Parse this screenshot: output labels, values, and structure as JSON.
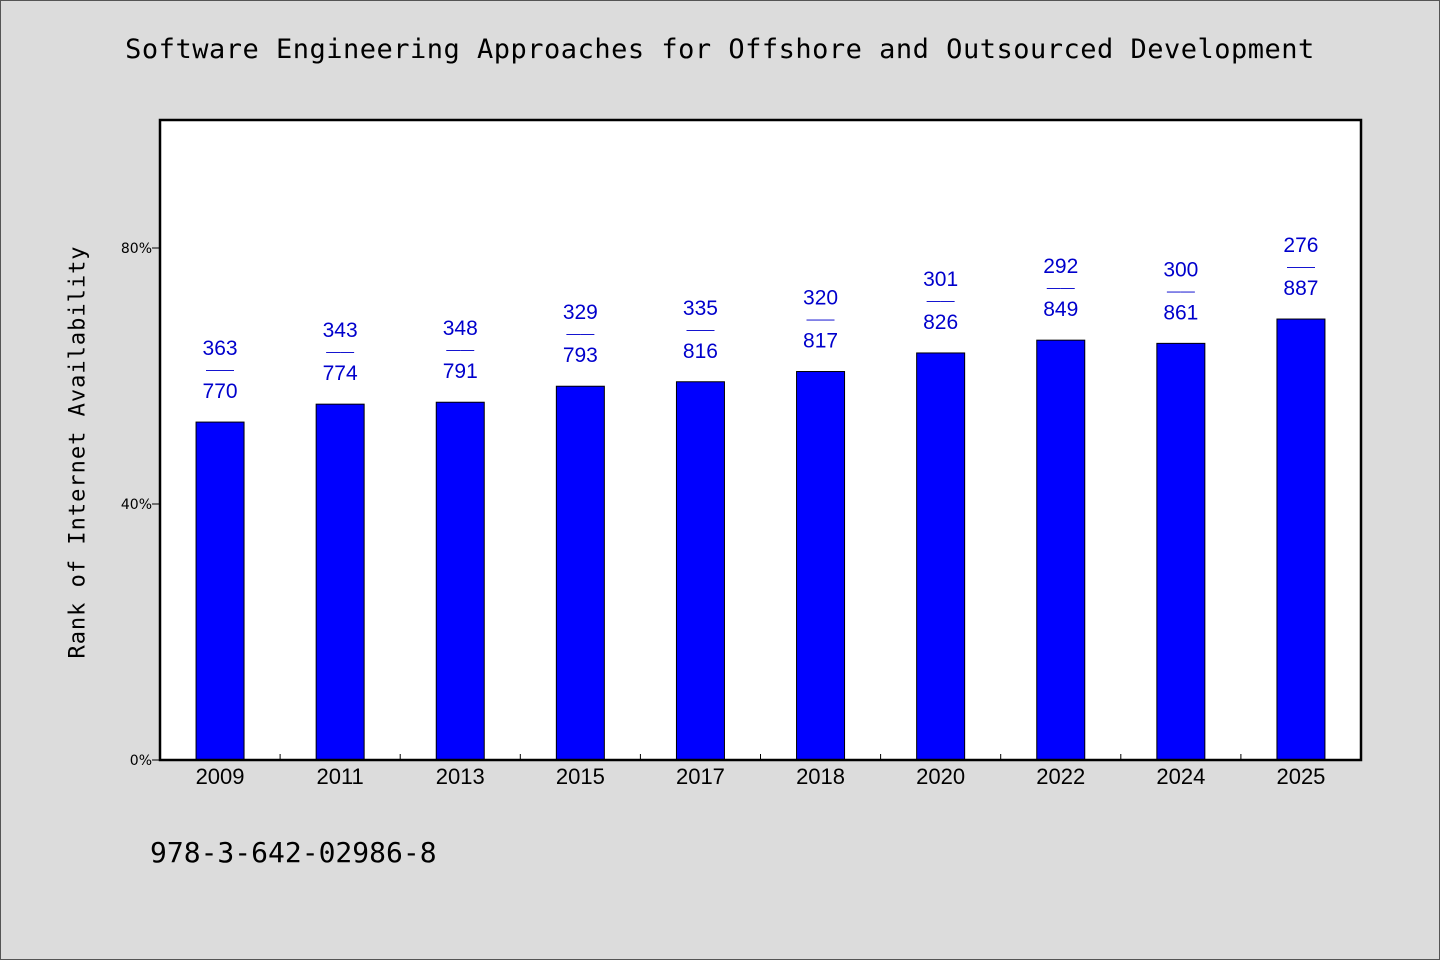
{
  "chart_data": {
    "type": "bar",
    "title": "Software Engineering Approaches for Offshore and Outsourced Development",
    "ylabel": "Rank of Internet Availability",
    "xlabel": "",
    "ylim": [
      0,
      100
    ],
    "yticks": [
      {
        "value": 0,
        "label": "0%"
      },
      {
        "value": 40,
        "label": "40%"
      },
      {
        "value": 80,
        "label": "80%"
      }
    ],
    "categories": [
      "2009",
      "2011",
      "2013",
      "2015",
      "2017",
      "2018",
      "2020",
      "2022",
      "2024",
      "2025"
    ],
    "values": [
      52.8,
      55.6,
      55.9,
      58.4,
      59.1,
      60.7,
      63.6,
      65.6,
      65.1,
      68.9
    ],
    "data_labels": [
      {
        "top": "363",
        "mid": "——",
        "bottom": "770"
      },
      {
        "top": "343",
        "mid": "——",
        "bottom": "774"
      },
      {
        "top": "348",
        "mid": "——",
        "bottom": "791"
      },
      {
        "top": "329",
        "mid": "——",
        "bottom": "793"
      },
      {
        "top": "335",
        "mid": "——",
        "bottom": "816"
      },
      {
        "top": "320",
        "mid": "——",
        "bottom": "817"
      },
      {
        "top": "301",
        "mid": "——",
        "bottom": "826"
      },
      {
        "top": "292",
        "mid": "——",
        "bottom": "849"
      },
      {
        "top": "300",
        "mid": "——",
        "bottom": "861"
      },
      {
        "top": "276",
        "mid": "——",
        "bottom": "887"
      }
    ],
    "bar_color": "#0000ff",
    "label_color": "#0000cc",
    "grid": false,
    "legend": "none"
  },
  "footer": {
    "isbn": "978-3-642-02986-8"
  }
}
